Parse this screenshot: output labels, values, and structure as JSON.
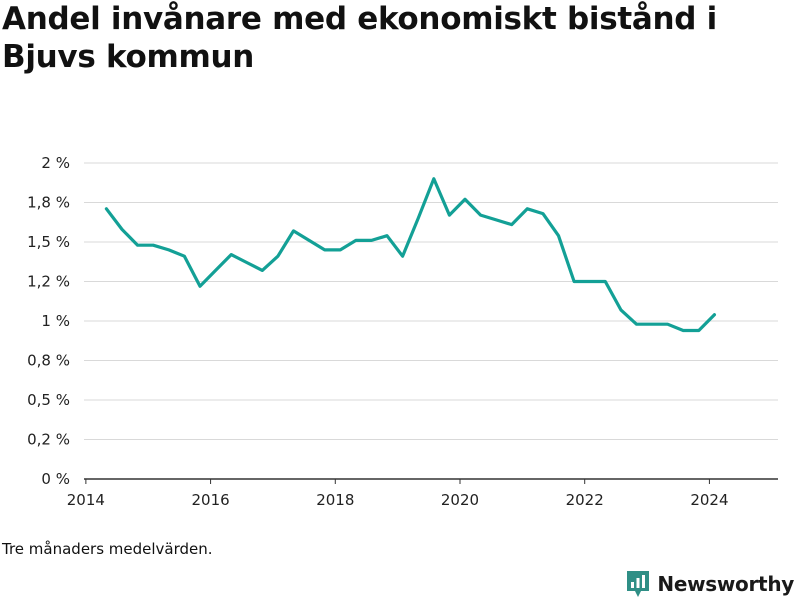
{
  "header": {
    "title": "Andel invånare med ekonomiskt bistånd i Bjuvs kommun"
  },
  "footer": {
    "note": "Tre månaders medelvärden.",
    "brand": "Newsworthy",
    "brand_color": "#2f8f86"
  },
  "chart_data": {
    "type": "line",
    "title": "Andel invånare med ekonomiskt bistånd i Bjuvs kommun",
    "xlabel": "",
    "ylabel": "",
    "grid": true,
    "legend": "none",
    "line_color": "#13a096",
    "xlim": [
      2013.97,
      2025.1
    ],
    "ylim": [
      0,
      2.0
    ],
    "x_ticks": [
      2014,
      2016,
      2018,
      2020,
      2022,
      2024
    ],
    "x_tick_labels": [
      "2014",
      "2016",
      "2018",
      "2020",
      "2022",
      "2024"
    ],
    "y_ticks": [
      0,
      0.25,
      0.5,
      0.75,
      1.0,
      1.25,
      1.5,
      1.75,
      2.0
    ],
    "y_tick_labels": [
      "0 %",
      "0,2 %",
      "0,5 %",
      "0,8 %",
      "1 %",
      "1,2 %",
      "1,5 %",
      "1,8 %",
      "2 %"
    ],
    "series": [
      {
        "x": [
          2014.33,
          2014.58,
          2014.83,
          2015.08,
          2015.33,
          2015.58,
          2015.83,
          2016.08,
          2016.33,
          2016.58,
          2016.83,
          2017.08,
          2017.33,
          2017.58,
          2017.83,
          2018.08,
          2018.33,
          2018.58,
          2018.83,
          2019.08,
          2019.33,
          2019.58,
          2019.83,
          2020.08,
          2020.33,
          2020.58,
          2020.83,
          2021.08,
          2021.33,
          2021.58,
          2021.83,
          2022.08,
          2022.33,
          2022.58,
          2022.83,
          2023.08,
          2023.33,
          2023.58,
          2023.83,
          2024.08
        ],
        "values": [
          1.71,
          1.58,
          1.48,
          1.48,
          1.45,
          1.41,
          1.22,
          1.32,
          1.42,
          1.37,
          1.32,
          1.41,
          1.57,
          1.51,
          1.45,
          1.45,
          1.51,
          1.51,
          1.54,
          1.41,
          1.65,
          1.9,
          1.67,
          1.77,
          1.67,
          1.64,
          1.61,
          1.71,
          1.68,
          1.54,
          1.25,
          1.25,
          1.25,
          1.07,
          0.98,
          0.98,
          0.98,
          0.94,
          0.94,
          1.04
        ]
      }
    ]
  }
}
